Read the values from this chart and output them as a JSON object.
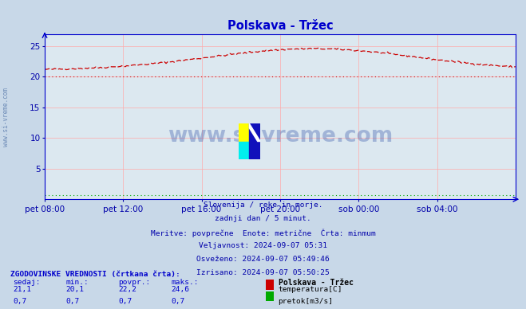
{
  "title": "Polskava - Tržec",
  "title_color": "#0000cc",
  "bg_color": "#c8d8e8",
  "plot_bg_color": "#dce8f0",
  "grid_color_v": "#ffaaaa",
  "grid_color_h": "#ffaaaa",
  "axis_color": "#0000cc",
  "tick_color": "#0000aa",
  "x_labels": [
    "pet 08:00",
    "pet 12:00",
    "pet 16:00",
    "pet 20:00",
    "sob 00:00",
    "sob 04:00"
  ],
  "y_min": 0,
  "y_max": 27,
  "y_ticks": [
    5,
    10,
    15,
    20,
    25
  ],
  "watermark_text": "www.si-vreme.com",
  "watermark_color": "#3355aa",
  "watermark_alpha": 0.35,
  "info_lines": [
    "Slovenija / reke in morje.",
    "zadnji dan / 5 minut.",
    "Meritve: povprečne  Enote: metrične  Črta: minmum",
    "Veljavnost: 2024-09-07 05:31",
    "Osveženo: 2024-09-07 05:49:46",
    "Izrisano: 2024-09-07 05:50:25"
  ],
  "legend_title": "ZGODOVINSKE VREDNOSTI (črtkana črta):",
  "legend_cols": [
    "sedaj:",
    "min.:",
    "povpr.:",
    "maks.:"
  ],
  "legend_station": "Polskava - Tržec",
  "legend_rows": [
    {
      "values": [
        "21,1",
        "20,1",
        "22,2",
        "24,6"
      ],
      "label": "temperatura[C]",
      "color": "#cc0000"
    },
    {
      "values": [
        "0,7",
        "0,7",
        "0,7",
        "0,7"
      ],
      "label": "pretok[m3/s]",
      "color": "#00aa00"
    }
  ],
  "temp_line_color": "#cc0000",
  "flow_line_color": "#00aa00",
  "left_label": "www.si-vreme.com"
}
